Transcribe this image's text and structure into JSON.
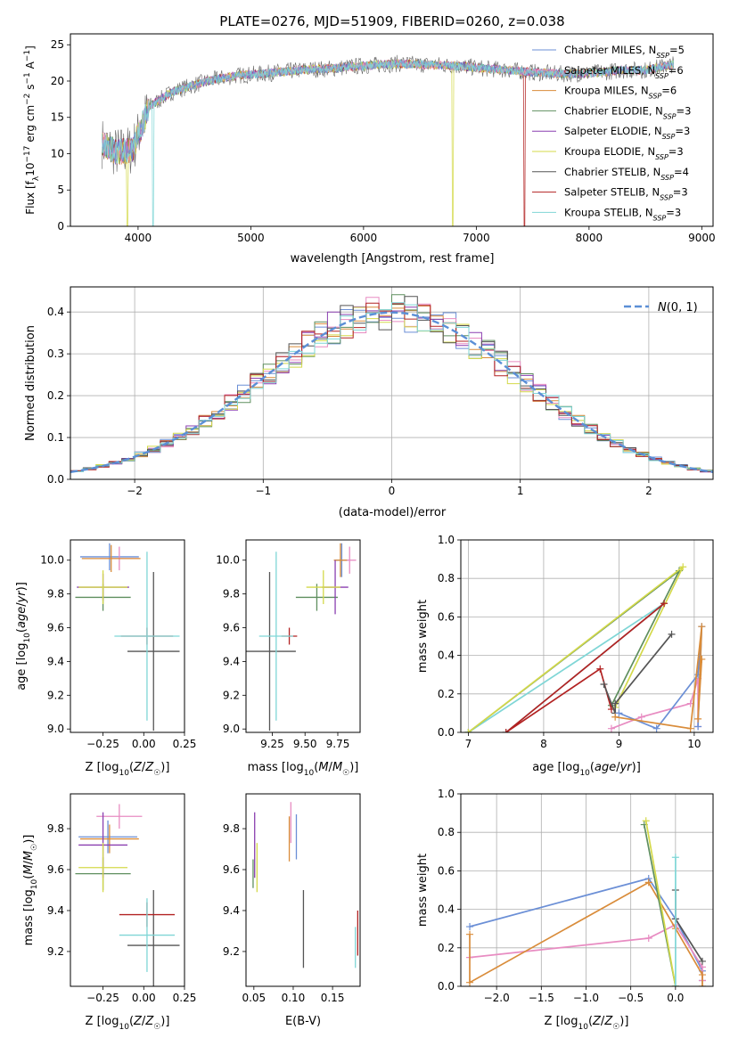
{
  "page_title": "PLATE=0276, MJD=51909, FIBERID=0260, z=0.038",
  "legend_entries": [
    {
      "label": "Chabrier MILES, N",
      "sub": "SSP",
      "tail": "=5",
      "color": "#6b8fd6"
    },
    {
      "label": "Salpeter MILES, N",
      "sub": "SSP",
      "tail": "=6",
      "color": "#e88cc2"
    },
    {
      "label": "Kroupa MILES, N",
      "sub": "SSP",
      "tail": "=6",
      "color": "#d98c3a"
    },
    {
      "label": "Chabrier ELODIE, N",
      "sub": "SSP",
      "tail": "=3",
      "color": "#5f8f5f"
    },
    {
      "label": "Salpeter ELODIE, N",
      "sub": "SSP",
      "tail": "=3",
      "color": "#8a3fb0"
    },
    {
      "label": "Kroupa ELODIE, N",
      "sub": "SSP",
      "tail": "=3",
      "color": "#d4d94a"
    },
    {
      "label": "Chabrier STELIB, N",
      "sub": "SSP",
      "tail": "=4",
      "color": "#555555"
    },
    {
      "label": "Salpeter STELIB, N",
      "sub": "SSP",
      "tail": "=3",
      "color": "#b22222"
    },
    {
      "label": "Kroupa STELIB, N",
      "sub": "SSP",
      "tail": "=3",
      "color": "#7fd6d6"
    }
  ],
  "chart_data": [
    {
      "id": "spectrum",
      "type": "line",
      "title": "PLATE=0276, MJD=51909, FIBERID=0260, z=0.038",
      "xlabel": "wavelength [Angstrom, rest frame]",
      "ylabel": "Flux [fλ10⁻¹⁷ erg cm⁻² s⁻¹ A⁻¹]",
      "xlim": [
        3400,
        9100
      ],
      "ylim": [
        0,
        26.5
      ],
      "xticks": [
        4000,
        5000,
        6000,
        7000,
        8000,
        9000
      ],
      "yticks": [
        0,
        5,
        10,
        15,
        20,
        25
      ],
      "continuum": {
        "x": [
          3680,
          3800,
          3950,
          4100,
          4300,
          4500,
          4700,
          4900,
          5100,
          5300,
          5500,
          5700,
          5900,
          6100,
          6300,
          6500,
          6700,
          6900,
          7100,
          7300,
          7500,
          7700,
          7900,
          8100,
          8300,
          8500,
          8750
        ],
        "y": [
          11.5,
          10.2,
          10.5,
          16.5,
          18.5,
          19.5,
          20.3,
          20.8,
          21.0,
          21.3,
          21.6,
          21.7,
          22.0,
          22.2,
          22.4,
          22.3,
          22.2,
          22.0,
          21.7,
          21.5,
          21.2,
          21.0,
          21.0,
          21.2,
          21.5,
          21.5,
          22.3
        ]
      },
      "dips": [
        {
          "x": 3905,
          "y": 0,
          "series": "Kroupa ELODIE"
        },
        {
          "x": 4135,
          "y": 0,
          "series": "Kroupa STELIB"
        },
        {
          "x": 6790,
          "y": 0,
          "series": "Kroupa ELODIE"
        },
        {
          "x": 7425,
          "y": 0,
          "series": "Salpeter STELIB"
        }
      ]
    },
    {
      "id": "residual-histogram",
      "type": "step",
      "xlabel": "(data-model)/error",
      "ylabel": "Normed distribution",
      "xlim": [
        -2.5,
        2.5
      ],
      "ylim": [
        0,
        0.46
      ],
      "xticks": [
        -2,
        -1,
        0,
        1,
        2
      ],
      "yticks": [
        0,
        0.1,
        0.2,
        0.3,
        0.4
      ],
      "bin_width": 0.1,
      "reference_curve_label": "N(0,1)",
      "reference_curve_color": "#5b8fd6"
    },
    {
      "id": "age-vs-Z",
      "type": "errorbar",
      "xlabel": "Z [log10(Z/Z☉)]",
      "ylabel": "age  [log10(age/yr)]",
      "xlim": [
        -0.45,
        0.25
      ],
      "ylim": [
        8.98,
        10.12
      ],
      "xticks": [
        -0.25,
        0.0,
        0.25
      ],
      "xtick_labels": [
        "−0.25",
        "0.00",
        "0.25"
      ],
      "yticks": [
        9.0,
        9.2,
        9.4,
        9.6,
        9.8,
        10.0
      ],
      "points": [
        {
          "series": "Chabrier MILES",
          "x": -0.21,
          "xerr": 0.18,
          "y": 10.02,
          "yerr": 0.08
        },
        {
          "series": "Salpeter MILES",
          "x": -0.15,
          "xerr": 0.12,
          "y": 10.01,
          "yerr": 0.07
        },
        {
          "series": "Kroupa MILES",
          "x": -0.2,
          "xerr": 0.18,
          "y": 10.01,
          "yerr": 0.08
        },
        {
          "series": "Chabrier ELODIE",
          "x": -0.25,
          "xerr": 0.17,
          "y": 9.78,
          "yerr": 0.08
        },
        {
          "series": "Salpeter ELODIE",
          "x": -0.25,
          "xerr": 0.16,
          "y": 9.84,
          "yerr": 0.08
        },
        {
          "series": "Kroupa ELODIE",
          "x": -0.25,
          "xerr": 0.15,
          "y": 9.84,
          "yerr": 0.1
        },
        {
          "series": "Chabrier STELIB",
          "x": 0.06,
          "xerr": 0.16,
          "y": 9.46,
          "yerr": 0.47
        },
        {
          "series": "Salpeter STELIB",
          "x": 0.02,
          "xerr": 0.16,
          "y": 9.55,
          "yerr": 0.05
        },
        {
          "series": "Kroupa STELIB",
          "x": 0.02,
          "xerr": 0.2,
          "y": 9.55,
          "yerr": 0.5
        }
      ]
    },
    {
      "id": "age-vs-mass",
      "type": "errorbar",
      "xlabel": "mass [log10(M/M☉)]",
      "xlim": [
        9.05,
        9.92
      ],
      "ylim": [
        8.98,
        10.12
      ],
      "xticks": [
        9.25,
        9.5,
        9.75
      ],
      "xtick_labels": [
        "9.25",
        "9.50",
        "9.75"
      ],
      "yticks": [
        9.0,
        9.2,
        9.4,
        9.6,
        9.8,
        10.0
      ],
      "points": [
        {
          "series": "Chabrier MILES",
          "x": 9.78,
          "xerr": 0.05,
          "y": 10.0,
          "yerr": 0.1
        },
        {
          "series": "Salpeter MILES",
          "x": 9.84,
          "xerr": 0.05,
          "y": 10.0,
          "yerr": 0.08
        },
        {
          "series": "Kroupa MILES",
          "x": 9.77,
          "xerr": 0.05,
          "y": 10.0,
          "yerr": 0.1
        },
        {
          "series": "Chabrier ELODIE",
          "x": 9.59,
          "xerr": 0.16,
          "y": 9.78,
          "yerr": 0.08
        },
        {
          "series": "Salpeter ELODIE",
          "x": 9.73,
          "xerr": 0.1,
          "y": 9.84,
          "yerr": 0.16
        },
        {
          "series": "Kroupa ELODIE",
          "x": 9.64,
          "xerr": 0.13,
          "y": 9.84,
          "yerr": 0.1
        },
        {
          "series": "Chabrier STELIB",
          "x": 9.23,
          "xerr": 0.2,
          "y": 9.46,
          "yerr": 0.47
        },
        {
          "series": "Salpeter STELIB",
          "x": 9.38,
          "xerr": 0.06,
          "y": 9.55,
          "yerr": 0.05
        },
        {
          "series": "Kroupa STELIB",
          "x": 9.28,
          "xerr": 0.13,
          "y": 9.55,
          "yerr": 0.5
        }
      ]
    },
    {
      "id": "massweight-vs-age",
      "type": "line",
      "xlabel": "age  [log10(age/yr)]",
      "ylabel": "mass weight",
      "xlim": [
        6.9,
        10.25
      ],
      "ylim": [
        0,
        1.0
      ],
      "xticks": [
        7,
        8,
        9,
        10
      ],
      "yticks": [
        0.0,
        0.2,
        0.4,
        0.6,
        0.8,
        1.0
      ],
      "series": [
        {
          "name": "Kroupa STELIB",
          "x": [
            7.5,
            9.6,
            7.0
          ],
          "y": [
            0.0,
            0.67,
            0.0
          ]
        },
        {
          "name": "Chabrier ELODIE",
          "x": [
            8.9,
            9.8,
            7.0
          ],
          "y": [
            0.14,
            0.84,
            0.0
          ]
        },
        {
          "name": "Kroupa ELODIE",
          "x": [
            8.95,
            9.85,
            7.0
          ],
          "y": [
            0.13,
            0.86,
            0.0
          ]
        },
        {
          "name": "Salpeter STELIB",
          "x": [
            8.9,
            8.75,
            7.5,
            9.6
          ],
          "y": [
            0.12,
            0.33,
            0.0,
            0.67
          ]
        },
        {
          "name": "Chabrier STELIB",
          "x": [
            8.8,
            8.95,
            8.95,
            9.7
          ],
          "y": [
            0.25,
            0.1,
            0.15,
            0.51
          ]
        },
        {
          "name": "Salpeter MILES",
          "x": [
            8.9,
            9.3,
            9.95,
            10.05,
            10.05
          ],
          "y": [
            0.02,
            0.08,
            0.15,
            0.28,
            0.03
          ]
        },
        {
          "name": "Chabrier MILES",
          "x": [
            9.0,
            9.5,
            10.05,
            10.1,
            10.05
          ],
          "y": [
            0.1,
            0.02,
            0.3,
            0.55,
            0.03
          ]
        },
        {
          "name": "Kroupa MILES",
          "x": [
            8.95,
            9.95,
            10.1,
            10.05,
            10.1
          ],
          "y": [
            0.08,
            0.02,
            0.55,
            0.07,
            0.38
          ]
        }
      ]
    },
    {
      "id": "mass-vs-Z",
      "type": "errorbar",
      "xlabel": "Z [log10(Z/Z☉)]",
      "ylabel": "mass [log10(M/M☉)]",
      "xlim": [
        -0.45,
        0.25
      ],
      "ylim": [
        9.03,
        9.97
      ],
      "xticks": [
        -0.25,
        0.0,
        0.25
      ],
      "xtick_labels": [
        "−0.25",
        "0.00",
        "0.25"
      ],
      "yticks": [
        9.2,
        9.4,
        9.6,
        9.8
      ],
      "points": [
        {
          "series": "Chabrier MILES",
          "x": -0.22,
          "xerr": 0.18,
          "y": 9.76,
          "yerr": 0.08
        },
        {
          "series": "Salpeter MILES",
          "x": -0.15,
          "xerr": 0.14,
          "y": 9.86,
          "yerr": 0.06
        },
        {
          "series": "Kroupa MILES",
          "x": -0.21,
          "xerr": 0.18,
          "y": 9.75,
          "yerr": 0.07
        },
        {
          "series": "Chabrier ELODIE",
          "x": -0.25,
          "xerr": 0.17,
          "y": 9.58,
          "yerr": 0.08
        },
        {
          "series": "Salpeter ELODIE",
          "x": -0.25,
          "xerr": 0.15,
          "y": 9.72,
          "yerr": 0.16
        },
        {
          "series": "Kroupa ELODIE",
          "x": -0.25,
          "xerr": 0.15,
          "y": 9.61,
          "yerr": 0.12
        },
        {
          "series": "Chabrier STELIB",
          "x": 0.06,
          "xerr": 0.16,
          "y": 9.23,
          "yerr": 0.27
        },
        {
          "series": "Salpeter STELIB",
          "x": 0.02,
          "xerr": 0.17,
          "y": 9.38,
          "yerr": 0.06
        },
        {
          "series": "Kroupa STELIB",
          "x": 0.02,
          "xerr": 0.17,
          "y": 9.28,
          "yerr": 0.18
        }
      ]
    },
    {
      "id": "mass-vs-EBV",
      "type": "errorbar",
      "xlabel": "E(B-V)",
      "xlim": [
        0.04,
        0.185
      ],
      "ylim": [
        9.03,
        9.97
      ],
      "xticks": [
        0.05,
        0.1,
        0.15
      ],
      "xtick_labels": [
        "0.05",
        "0.10",
        "0.15"
      ],
      "yticks": [
        9.2,
        9.4,
        9.6,
        9.8
      ],
      "points": [
        {
          "series": "Chabrier MILES",
          "x": 0.104,
          "xerr": 0,
          "y": 9.76,
          "yerr": 0.11
        },
        {
          "series": "Salpeter MILES",
          "x": 0.097,
          "xerr": 0,
          "y": 9.83,
          "yerr": 0.1
        },
        {
          "series": "Kroupa MILES",
          "x": 0.095,
          "xerr": 0,
          "y": 9.75,
          "yerr": 0.11
        },
        {
          "series": "Chabrier ELODIE",
          "x": 0.049,
          "xerr": 0,
          "y": 9.58,
          "yerr": 0.07
        },
        {
          "series": "Salpeter ELODIE",
          "x": 0.051,
          "xerr": 0,
          "y": 9.72,
          "yerr": 0.16
        },
        {
          "series": "Kroupa ELODIE",
          "x": 0.054,
          "xerr": 0,
          "y": 9.61,
          "yerr": 0.12
        },
        {
          "series": "Chabrier STELIB",
          "x": 0.113,
          "xerr": 0,
          "y": 9.31,
          "yerr": 0.19
        },
        {
          "series": "Salpeter STELIB",
          "x": 0.182,
          "xerr": 0,
          "y": 9.29,
          "yerr": 0.11
        },
        {
          "series": "Kroupa STELIB",
          "x": 0.179,
          "xerr": 0,
          "y": 9.22,
          "yerr": 0.1
        }
      ]
    },
    {
      "id": "massweight-vs-Z",
      "type": "line",
      "xlabel": "Z [log10(Z/Z☉)]",
      "ylabel": "mass weight",
      "xlim": [
        -2.4,
        0.42
      ],
      "ylim": [
        0,
        1.0
      ],
      "xticks": [
        -2.0,
        -1.5,
        -1.0,
        -0.5,
        0.0
      ],
      "xtick_labels": [
        "−2.0",
        "−1.5",
        "−1.0",
        "−0.5",
        "0.0"
      ],
      "yticks": [
        0.0,
        0.2,
        0.4,
        0.6,
        0.8,
        1.0
      ],
      "series": [
        {
          "name": "Chabrier MILES",
          "x": [
            -2.3,
            -0.3,
            0.0,
            0.3,
            0.3
          ],
          "y": [
            0.31,
            0.56,
            0.35,
            0.08,
            0.03
          ]
        },
        {
          "name": "Salpeter MILES",
          "x": [
            -2.3,
            -0.3,
            0.0,
            0.3,
            0.3
          ],
          "y": [
            0.15,
            0.25,
            0.32,
            0.1,
            0.03
          ]
        },
        {
          "name": "Kroupa MILES",
          "x": [
            -2.3,
            -2.3,
            -0.3,
            0.0,
            0.3,
            0.3
          ],
          "y": [
            0.27,
            0.02,
            0.54,
            0.3,
            0.06,
            0.0
          ]
        },
        {
          "name": "Chabrier ELODIE",
          "x": [
            -0.35,
            0.0
          ],
          "y": [
            0.84,
            0.0
          ]
        },
        {
          "name": "Kroupa ELODIE",
          "x": [
            -0.33,
            0.0
          ],
          "y": [
            0.86,
            0.0
          ]
        },
        {
          "name": "Chabrier STELIB",
          "x": [
            0.0,
            0.0,
            0.3
          ],
          "y": [
            0.5,
            0.35,
            0.13
          ]
        },
        {
          "name": "Kroupa STELIB",
          "x": [
            0.0,
            0.0
          ],
          "y": [
            0.67,
            0.0
          ]
        }
      ]
    }
  ]
}
